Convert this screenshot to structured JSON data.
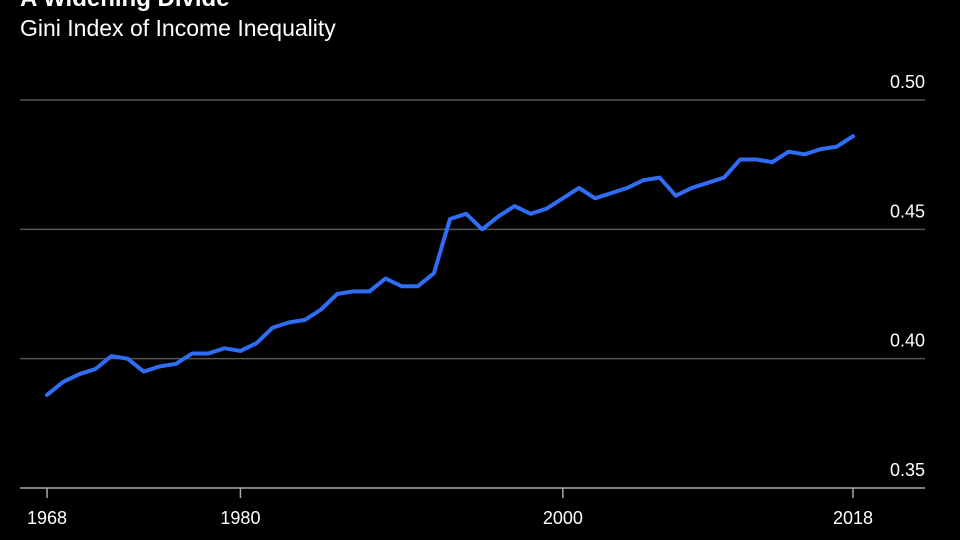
{
  "chart_data": {
    "type": "line",
    "title": "A Widening Divide",
    "subtitle": "Gini Index of Income Inequality",
    "xlabel": "",
    "ylabel": "",
    "xlim": [
      1968,
      2018
    ],
    "ylim": [
      0.35,
      0.5
    ],
    "y_ticks": [
      "0.35",
      "0.40",
      "0.45",
      "0.50"
    ],
    "x_ticks": [
      "1968",
      "1980",
      "2000",
      "2018"
    ],
    "grid": true,
    "line_color": "#2f6df6",
    "series": [
      {
        "x": [
          1968,
          1969,
          1970,
          1971,
          1972,
          1973,
          1974,
          1975,
          1976,
          1977,
          1978,
          1979,
          1980,
          1981,
          1982,
          1983,
          1984,
          1985,
          1986,
          1987,
          1988,
          1989,
          1990,
          1991,
          1992,
          1993,
          1994,
          1995,
          1996,
          1997,
          1998,
          1999,
          2000,
          2001,
          2002,
          2003,
          2004,
          2005,
          2006,
          2007,
          2008,
          2009,
          2010,
          2011,
          2012,
          2013,
          2014,
          2015,
          2016,
          2017,
          2018
        ],
        "values": [
          0.386,
          0.391,
          0.394,
          0.396,
          0.401,
          0.4,
          0.395,
          0.397,
          0.398,
          0.402,
          0.402,
          0.404,
          0.403,
          0.406,
          0.412,
          0.414,
          0.415,
          0.419,
          0.425,
          0.426,
          0.426,
          0.431,
          0.428,
          0.428,
          0.433,
          0.454,
          0.456,
          0.45,
          0.455,
          0.459,
          0.456,
          0.458,
          0.462,
          0.466,
          0.462,
          0.464,
          0.466,
          0.469,
          0.47,
          0.463,
          0.466,
          0.468,
          0.47,
          0.477,
          0.477,
          0.476,
          0.48,
          0.479,
          0.481,
          0.482,
          0.486
        ]
      }
    ]
  }
}
